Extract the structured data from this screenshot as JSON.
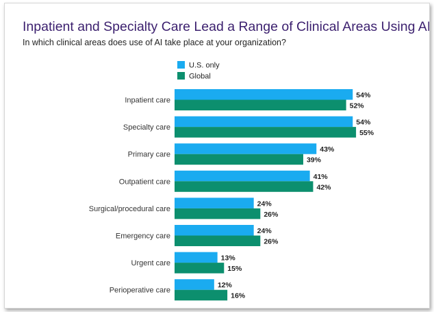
{
  "title": "Inpatient and Specialty Care Lead a Range of Clinical Areas Using AI",
  "subtitle": "In which clinical areas does use of AI take place at your organization?",
  "colors": {
    "us": "#1aabf0",
    "global": "#0c8f6e",
    "title": "#3b1f6e"
  },
  "chart_data": {
    "type": "bar",
    "orientation": "horizontal",
    "title": "Inpatient and Specialty Care Lead a Range of Clinical Areas Using AI",
    "subtitle": "In which clinical areas does use of AI take place at your organization?",
    "categories": [
      "Inpatient care",
      "Specialty care",
      "Primary care",
      "Outpatient care",
      "Surgical/procedural care",
      "Emergency care",
      "Urgent care",
      "Perioperative care"
    ],
    "series": [
      {
        "name": "U.S. only",
        "values": [
          54,
          54,
          43,
          41,
          24,
          24,
          13,
          12
        ],
        "labels": [
          "54%",
          "54%",
          "43%",
          "41%",
          "24%",
          "24%",
          "13%",
          "12%"
        ]
      },
      {
        "name": "Global",
        "values": [
          52,
          55,
          39,
          42,
          26,
          26,
          15,
          16
        ],
        "labels": [
          "52%",
          "55%",
          "39%",
          "42%",
          "26%",
          "26%",
          "15%",
          "16%"
        ]
      }
    ],
    "value_axis": {
      "range": [
        0,
        55
      ],
      "unit": "%"
    },
    "legend_placement": "top-left",
    "grid": false
  }
}
